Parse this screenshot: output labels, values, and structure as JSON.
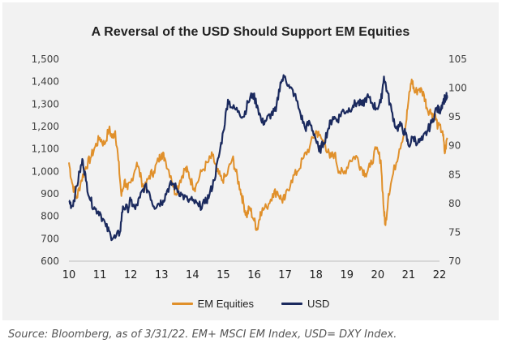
{
  "colors": {
    "em": "#e0902b",
    "usd": "#1b2a5e",
    "axis": "#bdbdbd"
  },
  "chart_data": {
    "type": "line",
    "title": "A Reversal of the USD Should Support EM Equities",
    "y_left": {
      "ticks": [
        "1,500",
        "1,400",
        "1,300",
        "1,200",
        "1,100",
        "1,000",
        "900",
        "800",
        "700",
        "600"
      ],
      "range": [
        600,
        1500
      ]
    },
    "y_right": {
      "ticks": [
        "105",
        "100",
        "95",
        "90",
        "85",
        "80",
        "75",
        "70"
      ],
      "range": [
        70,
        105
      ]
    },
    "x_ticks": [
      "10",
      "11",
      "12",
      "13",
      "14",
      "15",
      "16",
      "17",
      "18",
      "19",
      "20",
      "21",
      "22"
    ],
    "x_range": [
      2010,
      2022
    ],
    "series": [
      {
        "name": "EM Equities",
        "axis": "left",
        "points": [
          [
            2010.0,
            1040
          ],
          [
            2010.1,
            950
          ],
          [
            2010.25,
            880
          ],
          [
            2010.4,
            960
          ],
          [
            2010.55,
            1020
          ],
          [
            2010.7,
            1060
          ],
          [
            2010.85,
            1110
          ],
          [
            2011.0,
            1150
          ],
          [
            2011.15,
            1120
          ],
          [
            2011.3,
            1190
          ],
          [
            2011.4,
            1150
          ],
          [
            2011.5,
            1180
          ],
          [
            2011.6,
            1050
          ],
          [
            2011.7,
            890
          ],
          [
            2011.8,
            960
          ],
          [
            2011.9,
            920
          ],
          [
            2012.0,
            950
          ],
          [
            2012.2,
            1040
          ],
          [
            2012.35,
            960
          ],
          [
            2012.45,
            920
          ],
          [
            2012.6,
            980
          ],
          [
            2012.75,
            1000
          ],
          [
            2012.9,
            1050
          ],
          [
            2013.0,
            1080
          ],
          [
            2013.1,
            1060
          ],
          [
            2013.3,
            980
          ],
          [
            2013.45,
            900
          ],
          [
            2013.6,
            960
          ],
          [
            2013.75,
            1010
          ],
          [
            2013.85,
            1000
          ],
          [
            2014.0,
            940
          ],
          [
            2014.1,
            930
          ],
          [
            2014.3,
            1000
          ],
          [
            2014.5,
            1040
          ],
          [
            2014.65,
            1070
          ],
          [
            2014.8,
            1000
          ],
          [
            2014.95,
            960
          ],
          [
            2015.1,
            980
          ],
          [
            2015.3,
            1060
          ],
          [
            2015.4,
            1000
          ],
          [
            2015.55,
            920
          ],
          [
            2015.65,
            860
          ],
          [
            2015.75,
            800
          ],
          [
            2015.85,
            840
          ],
          [
            2016.0,
            780
          ],
          [
            2016.1,
            740
          ],
          [
            2016.2,
            820
          ],
          [
            2016.4,
            840
          ],
          [
            2016.6,
            900
          ],
          [
            2016.75,
            910
          ],
          [
            2016.9,
            870
          ],
          [
            2017.0,
            880
          ],
          [
            2017.2,
            960
          ],
          [
            2017.4,
            1000
          ],
          [
            2017.6,
            1060
          ],
          [
            2017.8,
            1110
          ],
          [
            2018.0,
            1180
          ],
          [
            2018.1,
            1160
          ],
          [
            2018.3,
            1120
          ],
          [
            2018.45,
            1060
          ],
          [
            2018.6,
            1080
          ],
          [
            2018.75,
            1000
          ],
          [
            2018.9,
            990
          ],
          [
            2019.1,
            1050
          ],
          [
            2019.3,
            1070
          ],
          [
            2019.45,
            1020
          ],
          [
            2019.6,
            990
          ],
          [
            2019.75,
            1020
          ],
          [
            2019.95,
            1100
          ],
          [
            2020.1,
            1050
          ],
          [
            2020.2,
            820
          ],
          [
            2020.25,
            760
          ],
          [
            2020.35,
            900
          ],
          [
            2020.5,
            990
          ],
          [
            2020.7,
            1100
          ],
          [
            2020.9,
            1200
          ],
          [
            2021.0,
            1320
          ],
          [
            2021.1,
            1410
          ],
          [
            2021.2,
            1350
          ],
          [
            2021.35,
            1370
          ],
          [
            2021.5,
            1340
          ],
          [
            2021.6,
            1280
          ],
          [
            2021.75,
            1260
          ],
          [
            2021.85,
            1250
          ],
          [
            2021.95,
            1200
          ],
          [
            2022.1,
            1180
          ],
          [
            2022.17,
            1080
          ],
          [
            2022.25,
            1150
          ]
        ]
      },
      {
        "name": "USD",
        "axis": "right",
        "points": [
          [
            2010.0,
            80.5
          ],
          [
            2010.1,
            79.5
          ],
          [
            2010.2,
            81.5
          ],
          [
            2010.35,
            85.5
          ],
          [
            2010.45,
            87.5
          ],
          [
            2010.55,
            84.0
          ],
          [
            2010.7,
            80.5
          ],
          [
            2010.85,
            79.0
          ],
          [
            2011.0,
            78.5
          ],
          [
            2011.2,
            76.0
          ],
          [
            2011.35,
            74.5
          ],
          [
            2011.5,
            74.0
          ],
          [
            2011.65,
            75.0
          ],
          [
            2011.75,
            79.5
          ],
          [
            2011.9,
            79.0
          ],
          [
            2012.0,
            80.5
          ],
          [
            2012.15,
            79.0
          ],
          [
            2012.3,
            81.0
          ],
          [
            2012.45,
            83.0
          ],
          [
            2012.6,
            82.0
          ],
          [
            2012.75,
            79.5
          ],
          [
            2012.9,
            80.0
          ],
          [
            2013.05,
            80.5
          ],
          [
            2013.2,
            82.5
          ],
          [
            2013.35,
            83.5
          ],
          [
            2013.5,
            82.5
          ],
          [
            2013.65,
            81.5
          ],
          [
            2013.85,
            80.5
          ],
          [
            2014.0,
            80.5
          ],
          [
            2014.2,
            79.5
          ],
          [
            2014.4,
            80.0
          ],
          [
            2014.55,
            81.5
          ],
          [
            2014.7,
            84.0
          ],
          [
            2014.85,
            88.0
          ],
          [
            2015.0,
            92.5
          ],
          [
            2015.15,
            98.0
          ],
          [
            2015.3,
            96.5
          ],
          [
            2015.5,
            96.0
          ],
          [
            2015.65,
            95.0
          ],
          [
            2015.8,
            97.5
          ],
          [
            2015.95,
            99.0
          ],
          [
            2016.1,
            97.0
          ],
          [
            2016.25,
            94.0
          ],
          [
            2016.4,
            94.5
          ],
          [
            2016.55,
            95.5
          ],
          [
            2016.7,
            96.0
          ],
          [
            2016.85,
            101.0
          ],
          [
            2017.0,
            102.0
          ],
          [
            2017.15,
            100.0
          ],
          [
            2017.3,
            99.0
          ],
          [
            2017.5,
            95.5
          ],
          [
            2017.65,
            93.0
          ],
          [
            2017.8,
            94.0
          ],
          [
            2017.95,
            92.0
          ],
          [
            2018.1,
            89.0
          ],
          [
            2018.25,
            90.5
          ],
          [
            2018.4,
            93.0
          ],
          [
            2018.55,
            95.0
          ],
          [
            2018.7,
            94.5
          ],
          [
            2018.85,
            96.0
          ],
          [
            2019.0,
            96.0
          ],
          [
            2019.2,
            97.0
          ],
          [
            2019.35,
            97.5
          ],
          [
            2019.5,
            97.0
          ],
          [
            2019.65,
            98.5
          ],
          [
            2019.8,
            97.5
          ],
          [
            2019.95,
            96.5
          ],
          [
            2020.1,
            97.5
          ],
          [
            2020.2,
            102.0
          ],
          [
            2020.3,
            99.5
          ],
          [
            2020.45,
            96.0
          ],
          [
            2020.6,
            93.0
          ],
          [
            2020.75,
            93.5
          ],
          [
            2020.9,
            92.0
          ],
          [
            2021.0,
            90.0
          ],
          [
            2021.15,
            91.5
          ],
          [
            2021.3,
            90.5
          ],
          [
            2021.45,
            91.0
          ],
          [
            2021.6,
            92.5
          ],
          [
            2021.75,
            94.0
          ],
          [
            2021.9,
            96.5
          ],
          [
            2022.0,
            96.0
          ],
          [
            2022.1,
            97.5
          ],
          [
            2022.2,
            98.5
          ],
          [
            2022.25,
            98.3
          ]
        ]
      }
    ],
    "legend": {
      "position": "bottom",
      "items": [
        "EM Equities",
        "USD"
      ]
    },
    "grid": false
  },
  "source_text": "Source: Bloomberg, as of 3/31/22. EM+ MSCI EM Index, USD= DXY Index."
}
